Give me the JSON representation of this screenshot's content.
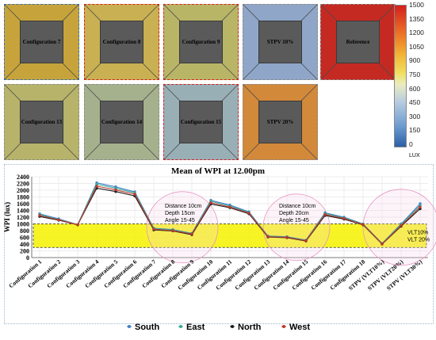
{
  "tiles": [
    {
      "label": "Configuration 7",
      "frame": "#3a6fb0",
      "ring": "#c6a43b"
    },
    {
      "label": "Configuration 8",
      "frame": "#d62020",
      "ring": "#c9b052"
    },
    {
      "label": "Configuration 9",
      "frame": "#d62020",
      "ring": "#b9b567"
    },
    {
      "label": "STPV 10%",
      "frame": "#8a8a8a",
      "ring": "#8fa6c8"
    },
    {
      "label": "Reference",
      "frame": "#8a8a8a",
      "ring": "#c42a22"
    },
    {
      "label": "Configuration 13",
      "frame": "#8a8a8a",
      "ring": "#b7b36a"
    },
    {
      "label": "Configuration 14",
      "frame": "#8a8a8a",
      "ring": "#a5b18d"
    },
    {
      "label": "Configuration 15",
      "frame": "#d62020",
      "ring": "#99afb6"
    },
    {
      "label": "STPV 20%",
      "frame": "#8a8a8a",
      "ring": "#d2893a"
    }
  ],
  "legend": {
    "ticks": [
      "1500",
      "1350",
      "1200",
      "1050",
      "900",
      "750",
      "600",
      "450",
      "300",
      "150",
      "0"
    ],
    "unit": "LUX"
  },
  "chart_data": {
    "type": "line",
    "title": "Mean of WPI at 12.00pm",
    "ylabel": "WPI (lux)",
    "xlabel": "",
    "ylim": [
      0,
      2400
    ],
    "yticks": [
      0,
      200,
      400,
      600,
      800,
      1000,
      1200,
      1400,
      1600,
      1800,
      2000,
      2200,
      2400
    ],
    "categories": [
      "Configuration 1",
      "Configuration 2",
      "Configuration 3",
      "Configuration 4",
      "Configuration 5",
      "Configuration 6",
      "Configuration 7",
      "Configuration 8",
      "Configuration 9",
      "Configuration 10",
      "Configuration 11",
      "Configuration 12",
      "Configuration 13",
      "Configuration 14",
      "Configuration 15",
      "Configuration 16",
      "Configuration 17",
      "Configuration 18",
      "STPV (VLT10%)",
      "STPV (VLT20%)",
      "STPV (VLT30%)"
    ],
    "series": [
      {
        "name": "South",
        "color": "#3f7fc8",
        "values": [
          1300,
          1150,
          980,
          2220,
          2100,
          1950,
          870,
          830,
          720,
          1700,
          1560,
          1360,
          640,
          620,
          520,
          1330,
          1200,
          1000,
          420,
          1000,
          1600
        ]
      },
      {
        "name": "East",
        "color": "#3aa89a",
        "values": [
          1280,
          1130,
          975,
          2180,
          2060,
          1920,
          860,
          820,
          710,
          1670,
          1530,
          1340,
          630,
          610,
          510,
          1310,
          1180,
          990,
          415,
          980,
          1550
        ]
      },
      {
        "name": "North",
        "color": "#1a1a1a",
        "values": [
          1220,
          1110,
          970,
          2060,
          1960,
          1830,
          820,
          790,
          680,
          1590,
          1480,
          1300,
          610,
          590,
          490,
          1250,
          1140,
          970,
          400,
          930,
          1450
        ]
      },
      {
        "name": "West",
        "color": "#c0392b",
        "values": [
          1250,
          1120,
          975,
          2120,
          2010,
          1880,
          840,
          800,
          700,
          1630,
          1500,
          1320,
          620,
          600,
          500,
          1280,
          1160,
          980,
          405,
          950,
          1500
        ]
      }
    ],
    "band": [
      300,
      1000
    ],
    "annotations": [
      {
        "lines": [
          "Distance 10cm",
          "Depth 15cm",
          "Angle 15-45"
        ],
        "at": 6
      },
      {
        "lines": [
          "Distance 10cm",
          "Depth 20cm",
          "Angle 15-45"
        ],
        "at": 12
      },
      {
        "lines": [
          "VLT10%",
          "VLT 20%"
        ],
        "at": 19
      }
    ]
  }
}
